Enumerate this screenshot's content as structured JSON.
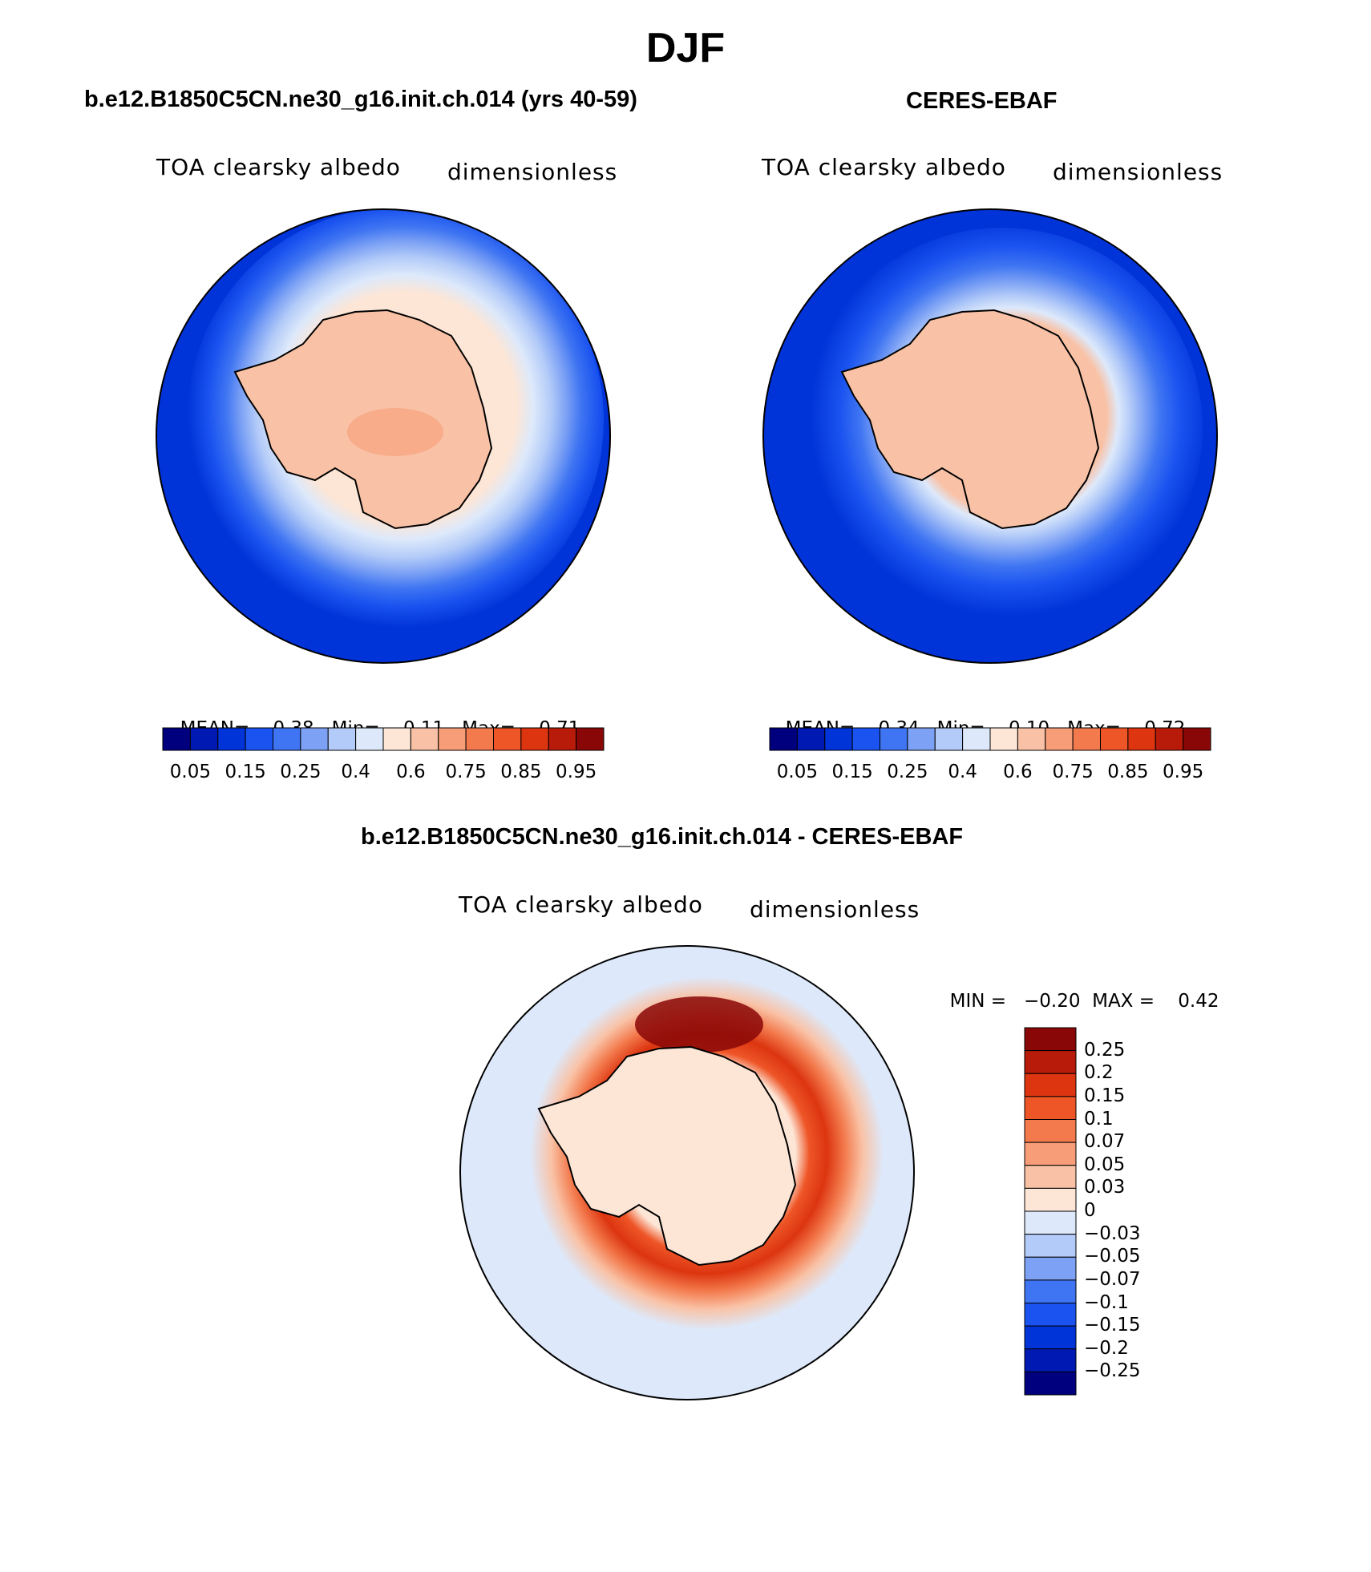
{
  "figure": {
    "title": "DJF",
    "panels": [
      {
        "id": "model",
        "title": "b.e12.B1850C5CN.ne30_g16.init.ch.014 (yrs 40-59)",
        "left_label": "TOA clearsky albedo",
        "right_label": "dimensionless",
        "stats": {
          "mean_label": "MEAN=",
          "mean": "0.38",
          "min_label": "Min=",
          "min": "0.11",
          "max_label": "Max=",
          "max": "0.71"
        }
      },
      {
        "id": "obs",
        "title": "CERES-EBAF",
        "left_label": "TOA clearsky albedo",
        "right_label": "dimensionless",
        "stats": {
          "mean_label": "MEAN=",
          "mean": "0.34",
          "min_label": "Min=",
          "min": "0.10",
          "max_label": "Max=",
          "max": "0.72"
        }
      },
      {
        "id": "diff",
        "title": "b.e12.B1850C5CN.ne30_g16.init.ch.014 - CERES-EBAF",
        "left_label": "TOA clearsky albedo",
        "right_label": "dimensionless",
        "stats": {
          "min_label": "MIN =",
          "min": "−0.20",
          "max_label": "MAX =",
          "max": "0.42"
        }
      }
    ]
  },
  "colorbars": {
    "albedo": {
      "colors": [
        "#00007f",
        "#0019b2",
        "#0033d8",
        "#1a53f0",
        "#3f75f2",
        "#7da2f5",
        "#b3cbf8",
        "#dde9fb",
        "#fde6d6",
        "#f9c2a6",
        "#f79d78",
        "#f37a4d",
        "#ee5527",
        "#dc3510",
        "#b81b0a",
        "#8a0707"
      ],
      "tick_labels": [
        "0.05",
        "0.15",
        "0.25",
        "0.4",
        "0.6",
        "0.75",
        "0.85",
        "0.95"
      ],
      "tick_boundaries": [
        1,
        3,
        5,
        7,
        9,
        11,
        13,
        15
      ]
    },
    "difference": {
      "colors": [
        "#00007f",
        "#0019b2",
        "#0033d8",
        "#1a53f0",
        "#3f75f2",
        "#7da2f5",
        "#b3cbf8",
        "#dde9fb",
        "#fde6d6",
        "#f9c2a6",
        "#f79d78",
        "#f37a4d",
        "#ee5527",
        "#dc3510",
        "#b81b0a",
        "#8a0707"
      ],
      "tick_labels": [
        "0.25",
        "0.2",
        "0.15",
        "0.1",
        "0.07",
        "0.05",
        "0.03",
        "0",
        "−0.03",
        "−0.05",
        "−0.07",
        "−0.1",
        "−0.15",
        "−0.2",
        "−0.25"
      ]
    }
  }
}
